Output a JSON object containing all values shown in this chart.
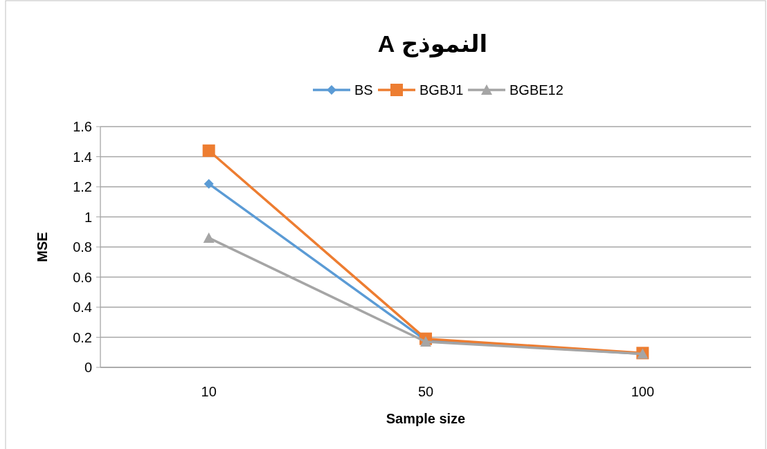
{
  "chart_data": {
    "type": "line",
    "title": "النموذج A",
    "xlabel": "Sample size",
    "ylabel": "MSE",
    "categories": [
      "10",
      "50",
      "100"
    ],
    "series": [
      {
        "name": "BS",
        "color": "#5b9bd5",
        "marker": "diamond",
        "values": [
          1.22,
          0.18,
          0.09
        ]
      },
      {
        "name": "BGBJ1",
        "color": "#ed7d31",
        "marker": "square",
        "values": [
          1.44,
          0.19,
          0.095
        ]
      },
      {
        "name": "BGBE12",
        "color": "#a5a5a5",
        "marker": "triangle",
        "values": [
          0.86,
          0.17,
          0.09
        ]
      }
    ],
    "ylim": [
      0,
      1.6
    ],
    "yticks": [
      0,
      0.2,
      0.4,
      0.6,
      0.8,
      1,
      1.2,
      1.4,
      1.6
    ],
    "grid": "y",
    "legend": "top"
  }
}
